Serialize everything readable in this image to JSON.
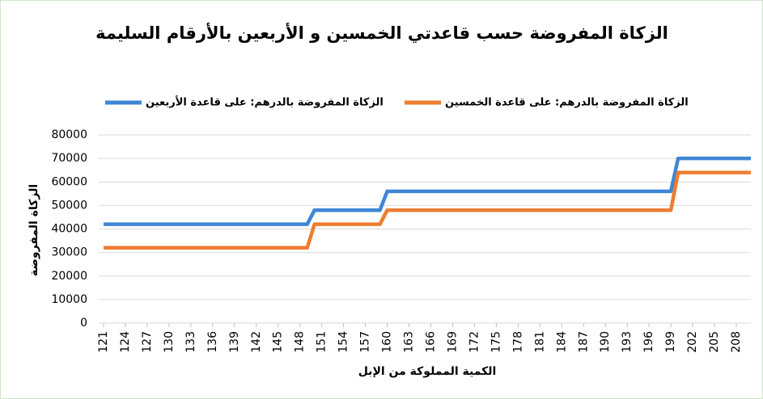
{
  "chart_data": {
    "type": "line",
    "title": "الزكاة المفروضة حسب قاعدتي الخمسين و الأربعين بالأرقام السليمة",
    "xlabel": "الكمية المملوكة من الإبل",
    "ylabel": "الزكاة المفروضة",
    "x": [
      121,
      122,
      123,
      124,
      125,
      126,
      127,
      128,
      129,
      130,
      131,
      132,
      133,
      134,
      135,
      136,
      137,
      138,
      139,
      140,
      141,
      142,
      143,
      144,
      145,
      146,
      147,
      148,
      149,
      150,
      151,
      152,
      153,
      154,
      155,
      156,
      157,
      158,
      159,
      160,
      161,
      162,
      163,
      164,
      165,
      166,
      167,
      168,
      169,
      170,
      171,
      172,
      173,
      174,
      175,
      176,
      177,
      178,
      179,
      180,
      181,
      182,
      183,
      184,
      185,
      186,
      187,
      188,
      189,
      190,
      191,
      192,
      193,
      194,
      195,
      196,
      197,
      198,
      199,
      200,
      201,
      202,
      203,
      204,
      205,
      206,
      207,
      208,
      209,
      210
    ],
    "xlim": [
      121,
      210
    ],
    "xticks": [
      121,
      124,
      127,
      130,
      133,
      136,
      139,
      142,
      145,
      148,
      151,
      154,
      157,
      160,
      163,
      166,
      169,
      172,
      175,
      178,
      181,
      184,
      187,
      190,
      193,
      196,
      199,
      202,
      205,
      208
    ],
    "ylim": [
      0,
      80000
    ],
    "yticks": [
      0,
      10000,
      20000,
      30000,
      40000,
      50000,
      60000,
      70000,
      80000
    ],
    "grid": true,
    "series": [
      {
        "name": "الزكاة المفروضة بالدرهم: على قاعدة الأربعين",
        "color": "#3f86d6",
        "values": [
          42000,
          42000,
          42000,
          42000,
          42000,
          42000,
          42000,
          42000,
          42000,
          42000,
          42000,
          42000,
          42000,
          42000,
          42000,
          42000,
          42000,
          42000,
          42000,
          42000,
          42000,
          42000,
          42000,
          42000,
          42000,
          42000,
          42000,
          42000,
          42000,
          48000,
          48000,
          48000,
          48000,
          48000,
          48000,
          48000,
          48000,
          48000,
          48000,
          56000,
          56000,
          56000,
          56000,
          56000,
          56000,
          56000,
          56000,
          56000,
          56000,
          56000,
          56000,
          56000,
          56000,
          56000,
          56000,
          56000,
          56000,
          56000,
          56000,
          56000,
          56000,
          56000,
          56000,
          56000,
          56000,
          56000,
          56000,
          56000,
          56000,
          56000,
          56000,
          56000,
          56000,
          56000,
          56000,
          56000,
          56000,
          56000,
          56000,
          70000,
          70000,
          70000,
          70000,
          70000,
          70000,
          70000,
          70000,
          70000,
          70000,
          70000
        ]
      },
      {
        "name": "الزكاة المفروضة بالدرهم: على قاعدة الخمسين",
        "color": "#ed7d31",
        "values": [
          32000,
          32000,
          32000,
          32000,
          32000,
          32000,
          32000,
          32000,
          32000,
          32000,
          32000,
          32000,
          32000,
          32000,
          32000,
          32000,
          32000,
          32000,
          32000,
          32000,
          32000,
          32000,
          32000,
          32000,
          32000,
          32000,
          32000,
          32000,
          32000,
          42000,
          42000,
          42000,
          42000,
          42000,
          42000,
          42000,
          42000,
          42000,
          42000,
          48000,
          48000,
          48000,
          48000,
          48000,
          48000,
          48000,
          48000,
          48000,
          48000,
          48000,
          48000,
          48000,
          48000,
          48000,
          48000,
          48000,
          48000,
          48000,
          48000,
          48000,
          48000,
          48000,
          48000,
          48000,
          48000,
          48000,
          48000,
          48000,
          48000,
          48000,
          48000,
          48000,
          48000,
          48000,
          48000,
          48000,
          48000,
          48000,
          48000,
          64000,
          64000,
          64000,
          64000,
          64000,
          64000,
          64000,
          64000,
          64000,
          64000,
          64000
        ]
      }
    ]
  }
}
